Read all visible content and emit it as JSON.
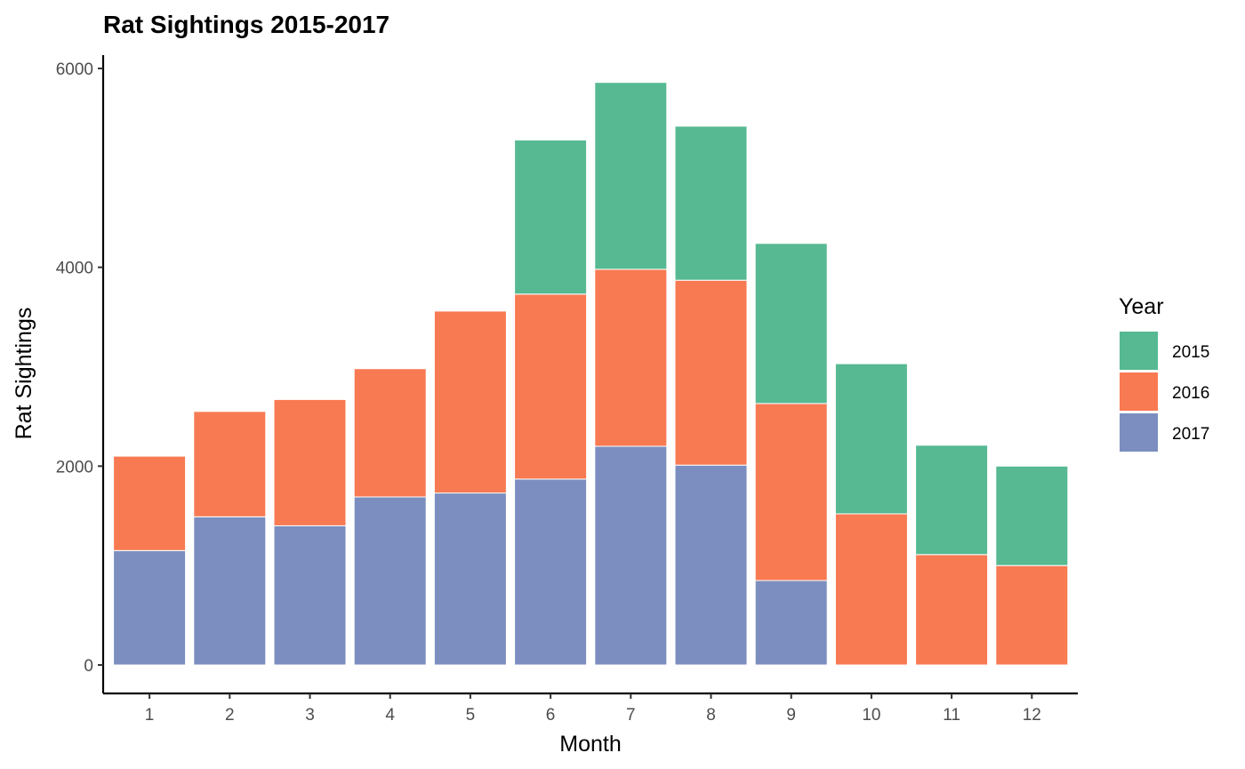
{
  "chart_data": {
    "type": "bar",
    "stacked": true,
    "title": "Rat Sightings 2015-2017",
    "xlabel": "Month",
    "ylabel": "Rat Sightings",
    "categories": [
      "1",
      "2",
      "3",
      "4",
      "5",
      "6",
      "7",
      "8",
      "9",
      "10",
      "11",
      "12"
    ],
    "ylim": [
      0,
      6000
    ],
    "yticks": [
      0,
      2000,
      4000,
      6000
    ],
    "grid": false,
    "legend": {
      "title": "Year",
      "position": "right"
    },
    "series": [
      {
        "name": "2017",
        "color": "#7b8ebf",
        "values": [
          1150,
          1490,
          1400,
          1690,
          1730,
          1870,
          2200,
          2010,
          850,
          0,
          0,
          0
        ]
      },
      {
        "name": "2016",
        "color": "#f87a52",
        "values": [
          950,
          1060,
          1270,
          1290,
          1830,
          1860,
          1780,
          1860,
          1780,
          1520,
          1110,
          1000
        ]
      },
      {
        "name": "2015",
        "color": "#56b992",
        "values": [
          0,
          0,
          0,
          0,
          0,
          1550,
          1880,
          1550,
          1610,
          1510,
          1100,
          1000
        ]
      }
    ],
    "legend_order": [
      "2015",
      "2016",
      "2017"
    ]
  }
}
